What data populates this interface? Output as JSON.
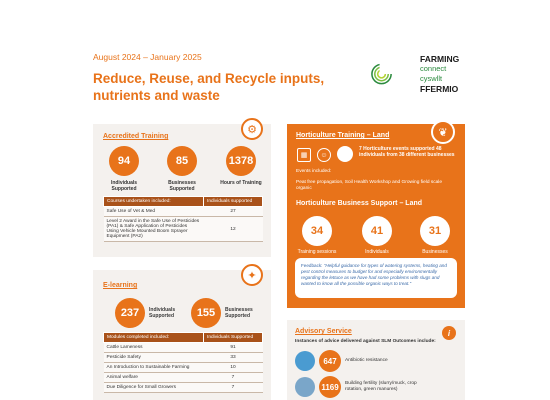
{
  "header": {
    "date_range": "August 2024 – January 2025",
    "title": "Reduce, Reuse, and Recycle inputs, nutrients and waste"
  },
  "logo": {
    "line1": "FARMING",
    "line2": "connect",
    "line3": "cyswllt",
    "line4": "FFERMIO"
  },
  "accredited": {
    "heading": "Accredited Training",
    "icon": "gear-icon",
    "stats": [
      {
        "value": "94",
        "label": "Individuals Supported"
      },
      {
        "value": "85",
        "label": "Businesses Supported"
      },
      {
        "value": "1378",
        "label": "Hours of Training"
      }
    ],
    "table": {
      "headers": [
        "Courses undertaken included:",
        "Individuals supported"
      ],
      "rows": [
        [
          "Safe Use of Vet & Med",
          "27"
        ],
        [
          "Level 2 Award in the Safe Use of Pesticides (PA1) & Safe Application of Pesticides Using Vehicle Mounted Boom Sprayer Equipment (PA2)",
          "12"
        ]
      ]
    }
  },
  "elearning": {
    "heading": "E-learning",
    "icon": "lightbulb-icon",
    "stats": [
      {
        "value": "237",
        "label": "Individuals Supported"
      },
      {
        "value": "155",
        "label": "Businesses Supported"
      }
    ],
    "table": {
      "headers": [
        "Modules completed included:",
        "Individuals Supported"
      ],
      "rows": [
        [
          "Cattle Lameness",
          "91"
        ],
        [
          "Pesticide Safety",
          "33"
        ],
        [
          "An Introduction to Sustainable Farming",
          "10"
        ],
        [
          "Animal welfare",
          "7"
        ],
        [
          "Due Diligence for Small Growers",
          "7"
        ]
      ]
    }
  },
  "horticulture": {
    "training_heading": "Horticulture Training – Land",
    "icon": "leaf-icon",
    "events_summary": "7 Horticulture events supported 48 individuals from 38 different businesses",
    "events_included_label": "Events included:",
    "events_list": "Peat free propagation, Soil Health Workshop and Growing field scale organic",
    "business_heading": "Horticulture Business Support – Land",
    "stats": [
      {
        "value": "34",
        "label": "Training sessions"
      },
      {
        "value": "41",
        "label": "Individuals"
      },
      {
        "value": "31",
        "label": "Businesses"
      }
    ],
    "feedback_label": "Feedback:",
    "feedback_text": "\"Helpful guidance for types of watering systems, heating and pest control measures to budget for and especially environmentally regarding the lettuce as we have had some problems with slugs and wanted to know all the possible organic ways to treat.\""
  },
  "advisory": {
    "heading": "Advisory Service",
    "icon": "info-icon",
    "intro": "Instances of advice delivered against SLM Outcomes include:",
    "rows": [
      {
        "value": "647",
        "label": "Antibiotic resistance"
      },
      {
        "value": "1169",
        "label": "Building fertility (slurry/muck, crop rotation, green manures)"
      }
    ]
  },
  "colors": {
    "accent": "#e8731a",
    "table_header": "#a9521a",
    "card_bg": "#f4f1ee",
    "logo_green": "#2b8a3e"
  }
}
